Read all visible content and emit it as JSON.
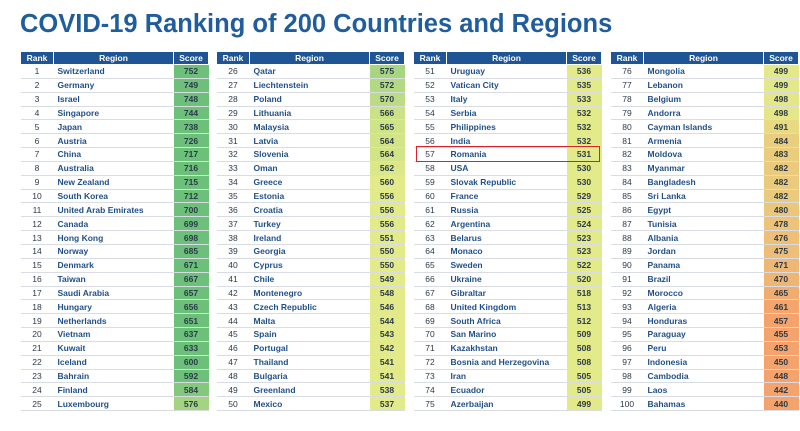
{
  "title": "COVID-19 Ranking of 200 Countries and Regions",
  "headers": {
    "rank": "Rank",
    "region": "Region",
    "score": "Score"
  },
  "colors": {
    "title": "#1f5d9c",
    "header_bg": "#1f5594",
    "region_text": "#1f4f8a",
    "score_high": "#6cc07a",
    "score_mid": "#e3ea8a",
    "score_low": "#f3a36b",
    "highlight_border": "#d8232a"
  },
  "highlight_region": "Romania",
  "chart_data": {
    "type": "table",
    "columns": [
      "Rank",
      "Region",
      "Score"
    ],
    "rows": [
      [
        1,
        "Switzerland",
        752
      ],
      [
        2,
        "Germany",
        749
      ],
      [
        3,
        "Israel",
        748
      ],
      [
        4,
        "Singapore",
        744
      ],
      [
        5,
        "Japan",
        738
      ],
      [
        6,
        "Austria",
        726
      ],
      [
        7,
        "China",
        717
      ],
      [
        8,
        "Australia",
        716
      ],
      [
        9,
        "New Zealand",
        715
      ],
      [
        10,
        "South Korea",
        712
      ],
      [
        11,
        "United Arab Emirates",
        700
      ],
      [
        12,
        "Canada",
        699
      ],
      [
        13,
        "Hong Kong",
        698
      ],
      [
        14,
        "Norway",
        685
      ],
      [
        15,
        "Denmark",
        671
      ],
      [
        16,
        "Taiwan",
        667
      ],
      [
        17,
        "Saudi Arabia",
        657
      ],
      [
        18,
        "Hungary",
        656
      ],
      [
        19,
        "Netherlands",
        651
      ],
      [
        20,
        "Vietnam",
        637
      ],
      [
        21,
        "Kuwait",
        633
      ],
      [
        22,
        "Iceland",
        600
      ],
      [
        23,
        "Bahrain",
        592
      ],
      [
        24,
        "Finland",
        584
      ],
      [
        25,
        "Luxembourg",
        576
      ],
      [
        26,
        "Qatar",
        575
      ],
      [
        27,
        "Liechtenstein",
        572
      ],
      [
        28,
        "Poland",
        570
      ],
      [
        29,
        "Lithuania",
        566
      ],
      [
        30,
        "Malaysia",
        565
      ],
      [
        31,
        "Latvia",
        564
      ],
      [
        32,
        "Slovenia",
        564
      ],
      [
        33,
        "Oman",
        562
      ],
      [
        34,
        "Greece",
        560
      ],
      [
        35,
        "Estonia",
        556
      ],
      [
        36,
        "Croatia",
        556
      ],
      [
        37,
        "Turkey",
        556
      ],
      [
        38,
        "Ireland",
        551
      ],
      [
        39,
        "Georgia",
        550
      ],
      [
        40,
        "Cyprus",
        550
      ],
      [
        41,
        "Chile",
        549
      ],
      [
        42,
        "Montenegro",
        548
      ],
      [
        43,
        "Czech Republic",
        546
      ],
      [
        44,
        "Malta",
        544
      ],
      [
        45,
        "Spain",
        543
      ],
      [
        46,
        "Portugal",
        542
      ],
      [
        47,
        "Thailand",
        541
      ],
      [
        48,
        "Bulgaria",
        541
      ],
      [
        49,
        "Greenland",
        538
      ],
      [
        50,
        "Mexico",
        537
      ],
      [
        51,
        "Uruguay",
        536
      ],
      [
        52,
        "Vatican City",
        535
      ],
      [
        53,
        "Italy",
        533
      ],
      [
        54,
        "Serbia",
        532
      ],
      [
        55,
        "Philippines",
        532
      ],
      [
        56,
        "India",
        532
      ],
      [
        57,
        "Romania",
        531
      ],
      [
        58,
        "USA",
        530
      ],
      [
        59,
        "Slovak Republic",
        530
      ],
      [
        60,
        "France",
        529
      ],
      [
        61,
        "Russia",
        525
      ],
      [
        62,
        "Argentina",
        524
      ],
      [
        63,
        "Belarus",
        523
      ],
      [
        64,
        "Monaco",
        523
      ],
      [
        65,
        "Sweden",
        522
      ],
      [
        66,
        "Ukraine",
        520
      ],
      [
        67,
        "Gibraltar",
        518
      ],
      [
        68,
        "United Kingdom",
        513
      ],
      [
        69,
        "South Africa",
        512
      ],
      [
        70,
        "San Marino",
        509
      ],
      [
        71,
        "Kazakhstan",
        508
      ],
      [
        72,
        "Bosnia and Herzegovina",
        508
      ],
      [
        73,
        "Iran",
        505
      ],
      [
        74,
        "Ecuador",
        505
      ],
      [
        75,
        "Azerbaijan",
        499
      ],
      [
        76,
        "Mongolia",
        499
      ],
      [
        77,
        "Lebanon",
        499
      ],
      [
        78,
        "Belgium",
        498
      ],
      [
        79,
        "Andorra",
        498
      ],
      [
        80,
        "Cayman Islands",
        491
      ],
      [
        81,
        "Armenia",
        484
      ],
      [
        82,
        "Moldova",
        483
      ],
      [
        83,
        "Myanmar",
        482
      ],
      [
        84,
        "Bangladesh",
        482
      ],
      [
        85,
        "Sri Lanka",
        482
      ],
      [
        86,
        "Egypt",
        480
      ],
      [
        87,
        "Tunisia",
        478
      ],
      [
        88,
        "Albania",
        476
      ],
      [
        89,
        "Jordan",
        475
      ],
      [
        90,
        "Panama",
        471
      ],
      [
        91,
        "Brazil",
        470
      ],
      [
        92,
        "Morocco",
        465
      ],
      [
        93,
        "Algeria",
        461
      ],
      [
        94,
        "Honduras",
        457
      ],
      [
        95,
        "Paraguay",
        455
      ],
      [
        96,
        "Peru",
        453
      ],
      [
        97,
        "Indonesia",
        450
      ],
      [
        98,
        "Cambodia",
        448
      ],
      [
        99,
        "Laos",
        442
      ],
      [
        100,
        "Bahamas",
        440
      ]
    ]
  }
}
